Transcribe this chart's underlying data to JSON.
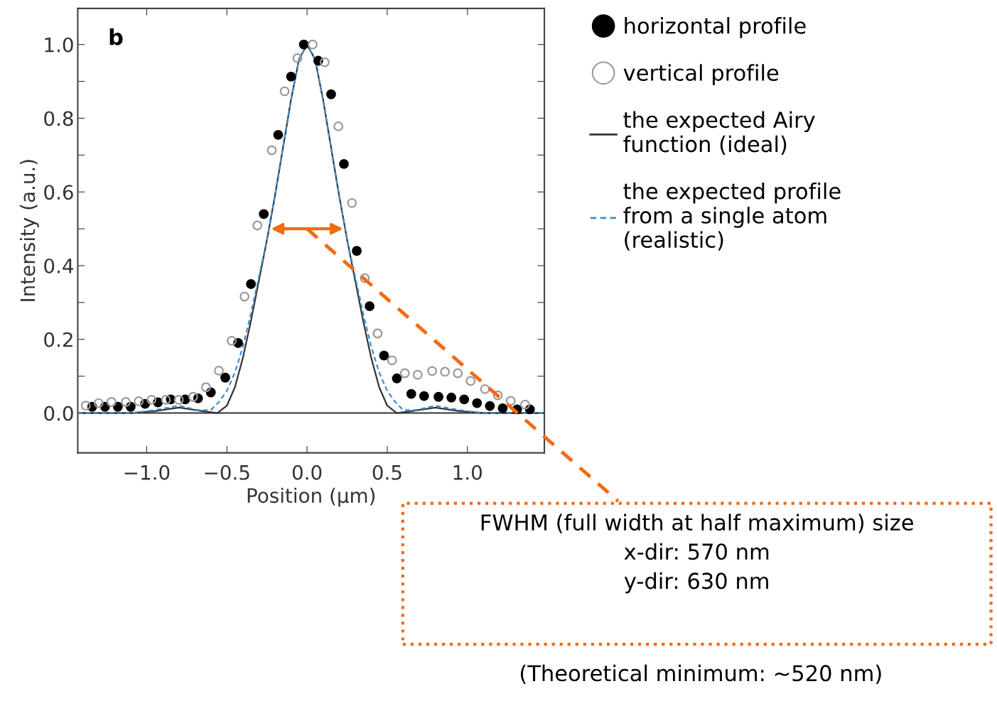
{
  "chart_data": {
    "type": "scatter",
    "xlabel": "Position (µm)",
    "ylabel": "Intensity (a.u.)",
    "xlim": [
      -1.43,
      1.48
    ],
    "ylim": [
      -0.108,
      1.098
    ],
    "xticks": [
      {
        "value": -1.0,
        "label": "−1.0"
      },
      {
        "value": -0.5,
        "label": "−0.5"
      },
      {
        "value": 0.0,
        "label": "0.0"
      },
      {
        "value": 0.5,
        "label": "0.5"
      },
      {
        "value": 1.0,
        "label": "1.0"
      }
    ],
    "yticks": [
      {
        "value": 0.0,
        "label": "0.0"
      },
      {
        "value": 0.1,
        "label": null
      },
      {
        "value": 0.2,
        "label": "0.2"
      },
      {
        "value": 0.3,
        "label": null
      },
      {
        "value": 0.4,
        "label": "0.4"
      },
      {
        "value": 0.5,
        "label": null
      },
      {
        "value": 0.6,
        "label": "0.6"
      },
      {
        "value": 0.7,
        "label": null
      },
      {
        "value": 0.8,
        "label": "0.8"
      },
      {
        "value": 0.9,
        "label": null
      },
      {
        "value": 1.0,
        "label": "1.0"
      }
    ],
    "grid": false,
    "legend": "right",
    "marker": "circle",
    "ref_lines": [
      {
        "axis": "y",
        "value": 0,
        "color": "#333333"
      }
    ],
    "series": [
      {
        "name": "horizontal profile",
        "color": "#000000",
        "x": [
          -1.34,
          -1.26,
          -1.18,
          -1.1,
          -1.01,
          -0.93,
          -0.85,
          -0.76,
          -0.68,
          -0.6,
          -0.51,
          -0.43,
          -0.35,
          -0.27,
          -0.18,
          -0.1,
          -0.02,
          0.07,
          0.15,
          0.23,
          0.31,
          0.39,
          0.48,
          0.56,
          0.65,
          0.73,
          0.82,
          0.9,
          0.98,
          1.06,
          1.14,
          1.22,
          1.31,
          1.39
        ],
        "values": [
          0.017,
          0.017,
          0.017,
          0.017,
          0.025,
          0.029,
          0.037,
          0.037,
          0.04,
          0.056,
          0.096,
          0.19,
          0.35,
          0.54,
          0.755,
          0.913,
          1.0,
          0.956,
          0.865,
          0.676,
          0.44,
          0.29,
          0.156,
          0.094,
          0.052,
          0.046,
          0.044,
          0.042,
          0.037,
          0.027,
          0.019,
          0.013,
          0.01,
          0.01
        ]
      },
      {
        "name": "vertical profile",
        "color": "#9a9a9a",
        "x": [
          -1.38,
          -1.3,
          -1.22,
          -1.13,
          -1.05,
          -0.97,
          -0.88,
          -0.8,
          -0.71,
          -0.63,
          -0.55,
          -0.47,
          -0.39,
          -0.31,
          -0.22,
          -0.14,
          -0.06,
          0.035,
          0.11,
          0.195,
          0.28,
          0.36,
          0.44,
          0.53,
          0.61,
          0.69,
          0.78,
          0.86,
          0.94,
          1.02,
          1.11,
          1.19,
          1.27,
          1.36
        ],
        "values": [
          0.02,
          0.027,
          0.03,
          0.03,
          0.032,
          0.036,
          0.036,
          0.036,
          0.044,
          0.07,
          0.115,
          0.196,
          0.316,
          0.509,
          0.713,
          0.873,
          0.963,
          1.0,
          0.952,
          0.778,
          0.57,
          0.366,
          0.216,
          0.143,
          0.108,
          0.104,
          0.114,
          0.112,
          0.108,
          0.087,
          0.065,
          0.048,
          0.033,
          0.023
        ]
      },
      {
        "name": "the expected Airy\nfunction (ideal)",
        "type": "line",
        "color": "#333333",
        "line_style": "solid",
        "marker": "none",
        "x": [
          -1.43,
          -1.1,
          -0.95,
          -0.8,
          -0.65,
          -0.56,
          -0.5,
          -0.45,
          -0.4,
          -0.35,
          -0.3,
          -0.25,
          -0.2,
          -0.15,
          -0.1,
          -0.05,
          0.0,
          0.05,
          0.1,
          0.15,
          0.2,
          0.25,
          0.3,
          0.35,
          0.4,
          0.45,
          0.5,
          0.56,
          0.65,
          0.8,
          0.95,
          1.1,
          1.48
        ],
        "values": [
          0.0,
          0.0,
          0.005,
          0.015,
          0.005,
          0.0,
          0.02,
          0.07,
          0.15,
          0.25,
          0.36,
          0.47,
          0.59,
          0.72,
          0.85,
          0.96,
          1.0,
          0.96,
          0.85,
          0.72,
          0.59,
          0.47,
          0.36,
          0.25,
          0.15,
          0.07,
          0.02,
          0.0,
          0.005,
          0.015,
          0.005,
          0.0,
          0.0
        ]
      },
      {
        "name": "the expected profile\nfrom a single atom\n(realistic)",
        "type": "line",
        "color": "#3a8fd6",
        "line_style": "dashed",
        "marker": "none",
        "x": [
          -1.43,
          -1.1,
          -0.95,
          -0.8,
          -0.68,
          -0.6,
          -0.55,
          -0.5,
          -0.45,
          -0.4,
          -0.35,
          -0.3,
          -0.25,
          -0.2,
          -0.15,
          -0.1,
          -0.05,
          0.0,
          0.05,
          0.1,
          0.15,
          0.2,
          0.25,
          0.3,
          0.35,
          0.4,
          0.45,
          0.5,
          0.55,
          0.6,
          0.68,
          0.8,
          0.95,
          1.1,
          1.48
        ],
        "values": [
          0.0,
          0.0,
          0.008,
          0.02,
          0.008,
          0.008,
          0.03,
          0.06,
          0.11,
          0.18,
          0.27,
          0.37,
          0.47,
          0.59,
          0.72,
          0.85,
          0.96,
          1.0,
          0.96,
          0.85,
          0.72,
          0.59,
          0.47,
          0.37,
          0.27,
          0.18,
          0.11,
          0.06,
          0.03,
          0.008,
          0.008,
          0.02,
          0.008,
          0.0,
          0.0
        ]
      }
    ],
    "annotations": [
      "b",
      "FWHM (full width at half maximum) size\nx-dir: 570 nm\ny-dir: 630 nm",
      "(Theoretical minimum: ~520 nm)"
    ]
  }
}
